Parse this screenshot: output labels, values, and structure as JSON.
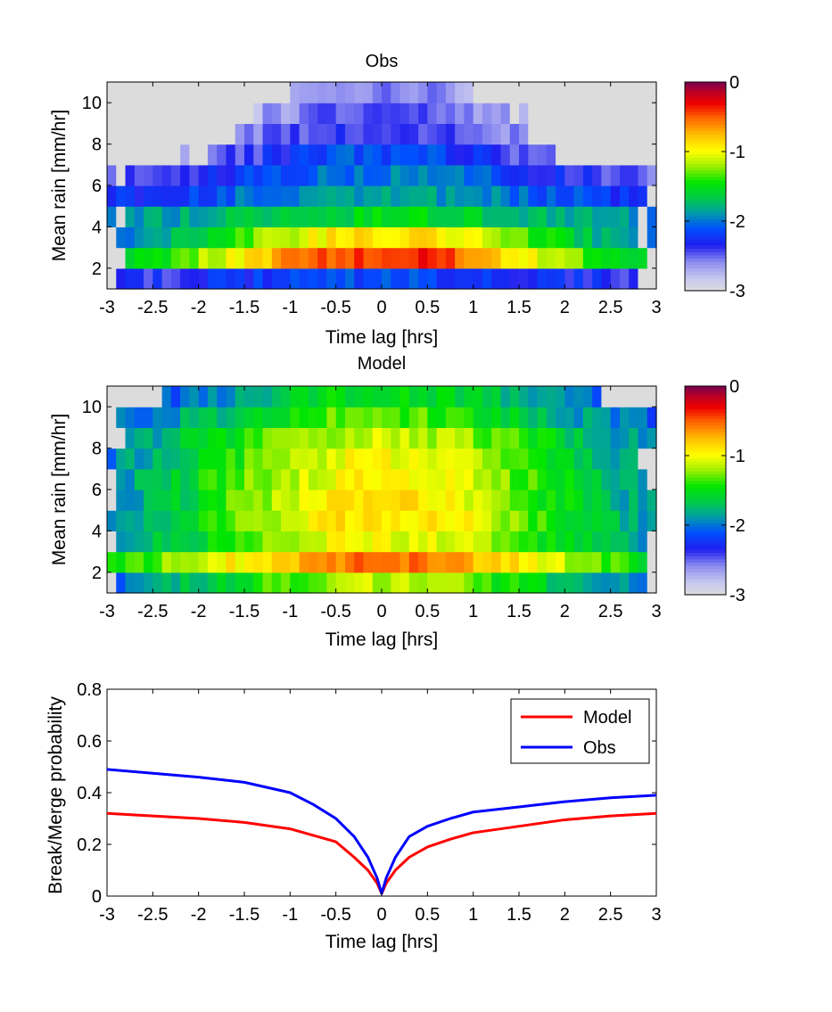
{
  "figure": {
    "background": "#ffffff"
  },
  "colormap": {
    "name": "jet-like with light-gray low end",
    "stops": [
      [
        0.0,
        "#dcdcdc"
      ],
      [
        0.06,
        "#c8c8f0"
      ],
      [
        0.14,
        "#8c8cf0"
      ],
      [
        0.22,
        "#1e1ef0"
      ],
      [
        0.3,
        "#0050ff"
      ],
      [
        0.38,
        "#00a0a0"
      ],
      [
        0.44,
        "#00c850"
      ],
      [
        0.52,
        "#00e600"
      ],
      [
        0.6,
        "#a0f000"
      ],
      [
        0.67,
        "#ffff00"
      ],
      [
        0.75,
        "#ffbe00"
      ],
      [
        0.83,
        "#ff6400"
      ],
      [
        0.9,
        "#f00000"
      ],
      [
        0.96,
        "#b40028"
      ],
      [
        1.0,
        "#780050"
      ]
    ]
  },
  "chart_data": [
    {
      "type": "heatmap",
      "title": "Obs",
      "xlabel": "Time lag [hrs]",
      "ylabel": "Mean rain [mm/hr]",
      "xlim": [
        -3,
        3
      ],
      "ylim": [
        1,
        11
      ],
      "xticks": [
        "-3",
        "-2.5",
        "-2",
        "-1.5",
        "-1",
        "-0.5",
        "0",
        "0.5",
        "1",
        "1.5",
        "2",
        "2.5",
        "3"
      ],
      "yticks": [
        "2",
        "4",
        "6",
        "8",
        "10"
      ],
      "x_bins": 60,
      "y_bin_edges": [
        1,
        2,
        3,
        4,
        5,
        6,
        7,
        8,
        9,
        10,
        11
      ],
      "clim": [
        -3,
        0
      ],
      "colorbar_ticks": [
        "0",
        "-1",
        "-2",
        "-3"
      ],
      "row_peak_log10": [
        -2.15,
        -0.35,
        -0.85,
        -1.55,
        -1.85,
        -1.95,
        -2.1,
        -2.35,
        -2.45,
        -2.55
      ],
      "row_halfwidth_hrs": [
        2.2,
        1.7,
        1.6,
        2.3,
        1.8,
        1.5,
        1.2,
        1.1,
        0.9,
        0.8
      ],
      "row_floor_log10": [
        -2.6,
        -2.1,
        -2.2,
        -2.3,
        -2.45,
        -2.6,
        -2.7,
        -2.75,
        -2.8,
        -2.85
      ],
      "row_extent_hrs": [
        3,
        3,
        3,
        3,
        3,
        3,
        2.0,
        1.6,
        1.4,
        0.9
      ]
    },
    {
      "type": "heatmap",
      "title": "Model",
      "xlabel": "Time lag [hrs]",
      "ylabel": "Mean rain [mm/hr]",
      "xlim": [
        -3,
        3
      ],
      "ylim": [
        1,
        11
      ],
      "xticks": [
        "-3",
        "-2.5",
        "-2",
        "-1.5",
        "-1",
        "-0.5",
        "0",
        "0.5",
        "1",
        "1.5",
        "2",
        "2.5",
        "3"
      ],
      "yticks": [
        "2",
        "4",
        "6",
        "8",
        "10"
      ],
      "x_bins": 60,
      "y_bin_edges": [
        1,
        2,
        3,
        4,
        5,
        6,
        7,
        8,
        9,
        10,
        11
      ],
      "clim": [
        -3,
        0
      ],
      "colorbar_ticks": [
        "0",
        "-1",
        "-2",
        "-3"
      ],
      "row_peak_log10": [
        -1.15,
        -0.55,
        -1.0,
        -0.85,
        -0.9,
        -0.95,
        -1.0,
        -1.1,
        -1.3,
        -1.5
      ],
      "row_halfwidth_hrs": [
        2.0,
        2.0,
        1.8,
        1.8,
        1.8,
        1.9,
        1.9,
        2.0,
        2.0,
        1.9
      ],
      "row_floor_log10": [
        -2.5,
        -2.0,
        -2.2,
        -2.2,
        -2.25,
        -2.3,
        -2.35,
        -2.4,
        -2.5,
        -2.6
      ],
      "row_extent_hrs": [
        3,
        3,
        3,
        3,
        3,
        3,
        3,
        3,
        3,
        2.4
      ]
    },
    {
      "type": "line",
      "xlabel": "Time lag [hrs]",
      "ylabel": "Break/Merge probability",
      "xlim": [
        -3,
        3
      ],
      "ylim": [
        0,
        0.8
      ],
      "xticks": [
        "-3",
        "-2.5",
        "-2",
        "-1.5",
        "-1",
        "-0.5",
        "0",
        "0.5",
        "1",
        "1.5",
        "2",
        "2.5",
        "3"
      ],
      "yticks": [
        "0",
        "0.2",
        "0.4",
        "0.6",
        "0.8"
      ],
      "legend": {
        "placement": "top-right"
      },
      "x": [
        -3,
        -2.5,
        -2,
        -1.5,
        -1,
        -0.75,
        -0.5,
        -0.3,
        -0.15,
        -0.05,
        0,
        0.05,
        0.15,
        0.3,
        0.5,
        0.75,
        1,
        1.5,
        2,
        2.5,
        3
      ],
      "series": [
        {
          "name": "Model",
          "color": "#ff0000",
          "values": [
            0.32,
            0.31,
            0.3,
            0.285,
            0.26,
            0.235,
            0.21,
            0.15,
            0.1,
            0.05,
            0.01,
            0.05,
            0.1,
            0.15,
            0.19,
            0.22,
            0.245,
            0.27,
            0.295,
            0.31,
            0.32
          ]
        },
        {
          "name": "Obs",
          "color": "#0000ff",
          "values": [
            0.49,
            0.475,
            0.46,
            0.44,
            0.4,
            0.355,
            0.3,
            0.23,
            0.15,
            0.07,
            0.01,
            0.07,
            0.15,
            0.23,
            0.27,
            0.3,
            0.325,
            0.345,
            0.365,
            0.38,
            0.39
          ]
        }
      ]
    }
  ]
}
